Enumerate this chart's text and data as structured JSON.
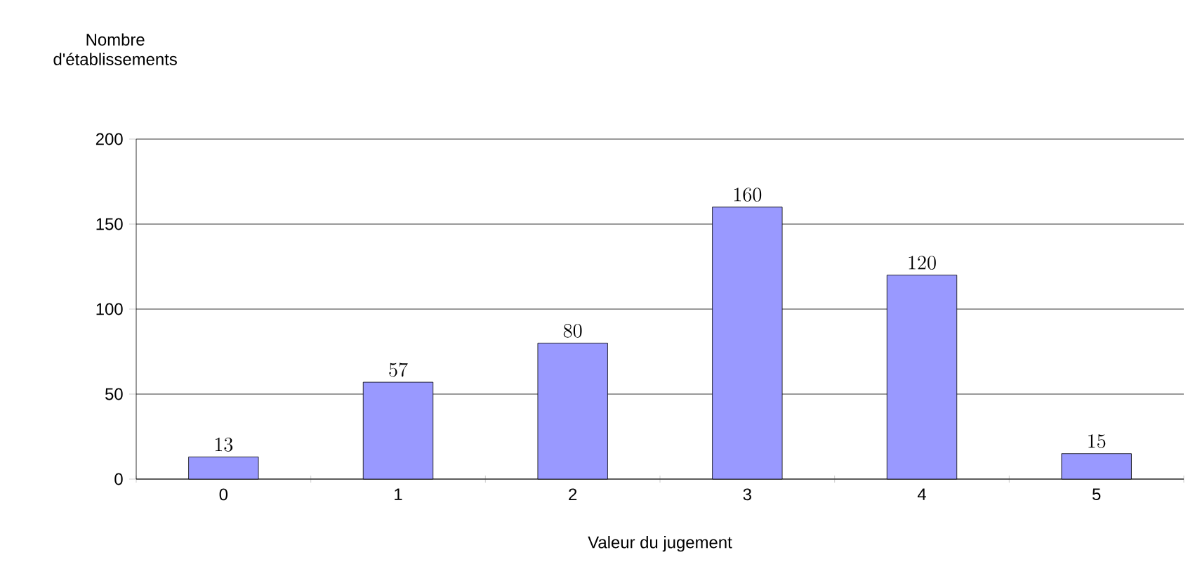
{
  "chart_data": {
    "type": "bar",
    "xlabel": "Valeur du jugement",
    "ylabel": "Nombre d'établissements",
    "categories": [
      "0",
      "1",
      "2",
      "3",
      "4",
      "5"
    ],
    "values": [
      13,
      57,
      80,
      160,
      120,
      15
    ],
    "color": "#9999ff",
    "ylim": [
      0,
      200
    ],
    "yticks": [
      0,
      50,
      100,
      150,
      200
    ],
    "grid": "y",
    "data_labels": true
  }
}
